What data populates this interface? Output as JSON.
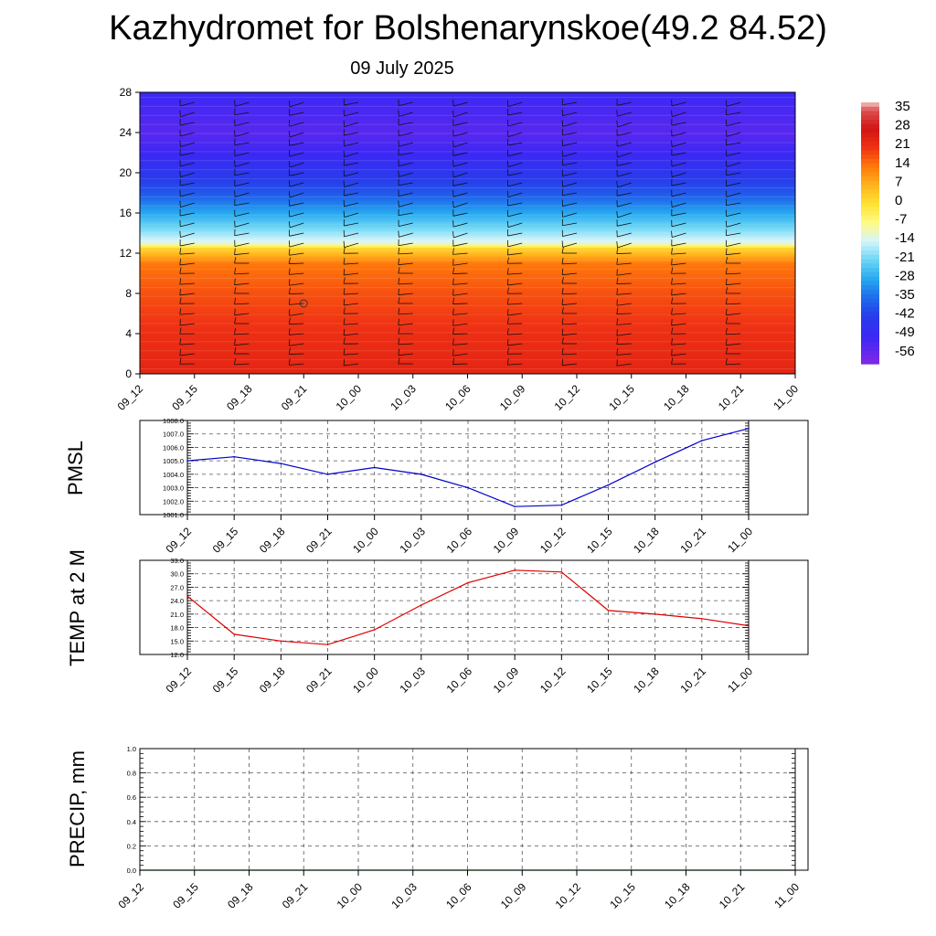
{
  "title": "Kazhydromet for Bolshenarynskoe(49.2 84.52)",
  "subtitle": "09 July 2025",
  "colors": {
    "pmsl_line": "#0000cc",
    "temp_line": "#dd0000",
    "precip_line": "#006600",
    "grid": "#555555"
  },
  "chart_data": [
    {
      "type": "heatmap",
      "panel": "wind-temperature-cross-section",
      "x_ticks": [
        "09_12",
        "09_15",
        "09_18",
        "09_21",
        "10_00",
        "10_03",
        "10_06",
        "10_09",
        "10_12",
        "10_15",
        "10_18",
        "10_21",
        "11_00"
      ],
      "y_ticks": [
        "0",
        "4",
        "8",
        "12",
        "16",
        "20",
        "24",
        "28"
      ],
      "ylim": [
        0,
        28
      ],
      "colorbar_labels": [
        "35",
        "28",
        "21",
        "14",
        "7",
        "0",
        "-7",
        "-14",
        "-21",
        "-28",
        "-35",
        "-42",
        "-49",
        "-56"
      ],
      "colorbar_range": [
        -60,
        38
      ],
      "temperature_profile": [
        {
          "y": 0,
          "t": 24
        },
        {
          "y": 4,
          "t": 22
        },
        {
          "y": 8,
          "t": 18
        },
        {
          "y": 11,
          "t": 14
        },
        {
          "y": 12.5,
          "t": 2
        },
        {
          "y": 13,
          "t": -12
        },
        {
          "y": 14,
          "t": -18
        },
        {
          "y": 16,
          "t": -28
        },
        {
          "y": 18,
          "t": -38
        },
        {
          "y": 20,
          "t": -44
        },
        {
          "y": 22,
          "t": -50
        },
        {
          "y": 24,
          "t": -54
        },
        {
          "y": 26,
          "t": -52
        },
        {
          "y": 28,
          "t": -50
        }
      ],
      "wind_barb_levels": [
        1,
        2,
        3,
        4,
        5,
        6,
        7,
        8,
        9,
        10,
        11,
        12,
        13,
        14,
        15,
        16,
        17,
        18,
        19,
        20,
        21,
        22,
        23,
        24,
        25,
        26,
        27
      ],
      "calm_marker": {
        "x": "09_21",
        "y": 7
      }
    },
    {
      "type": "line",
      "panel": "pmsl",
      "ylabel": "PMSL",
      "y_ticks": [
        "1001.0",
        "1002.0",
        "1003.0",
        "1004.0",
        "1005.0",
        "1006.0",
        "1007.0",
        "1008.0"
      ],
      "ylim": [
        1001,
        1008
      ],
      "x_ticks": [
        "09_12",
        "09_15",
        "09_18",
        "09_21",
        "10_00",
        "10_03",
        "10_06",
        "10_09",
        "10_12",
        "10_15",
        "10_18",
        "10_21",
        "11_00"
      ],
      "series": [
        {
          "values": [
            1005.0,
            1005.3,
            1004.8,
            1004.0,
            1004.5,
            1004.0,
            1003.0,
            1001.6,
            1001.7,
            1003.2,
            1004.9,
            1006.5,
            1007.4
          ]
        }
      ]
    },
    {
      "type": "line",
      "panel": "temp",
      "ylabel": "TEMP at 2 M",
      "y_ticks": [
        "12.0",
        "15.0",
        "18.0",
        "21.0",
        "24.0",
        "27.0",
        "30.0",
        "33.0"
      ],
      "ylim": [
        12,
        33
      ],
      "x_ticks": [
        "09_12",
        "09_15",
        "09_18",
        "09_21",
        "10_00",
        "10_03",
        "10_06",
        "10_09",
        "10_12",
        "10_15",
        "10_18",
        "10_21",
        "11_00"
      ],
      "series": [
        {
          "values": [
            25.0,
            16.5,
            15.0,
            14.2,
            17.5,
            23.0,
            28.0,
            30.8,
            30.4,
            21.8,
            21.0,
            20.0,
            18.4
          ]
        }
      ]
    },
    {
      "type": "line",
      "panel": "precip",
      "ylabel": "PRECIP, mm",
      "y_ticks": [
        "0.0",
        "0.2",
        "0.4",
        "0.6",
        "0.8",
        "1.0"
      ],
      "ylim": [
        0,
        1
      ],
      "x_ticks": [
        "09_12",
        "09_15",
        "09_18",
        "09_21",
        "10_00",
        "10_03",
        "10_06",
        "10_09",
        "10_12",
        "10_15",
        "10_18",
        "10_21",
        "11_00"
      ],
      "series": [
        {
          "values": [
            0,
            0,
            0,
            0,
            0,
            0,
            0,
            0,
            0,
            0,
            0,
            0,
            0
          ]
        }
      ]
    }
  ]
}
